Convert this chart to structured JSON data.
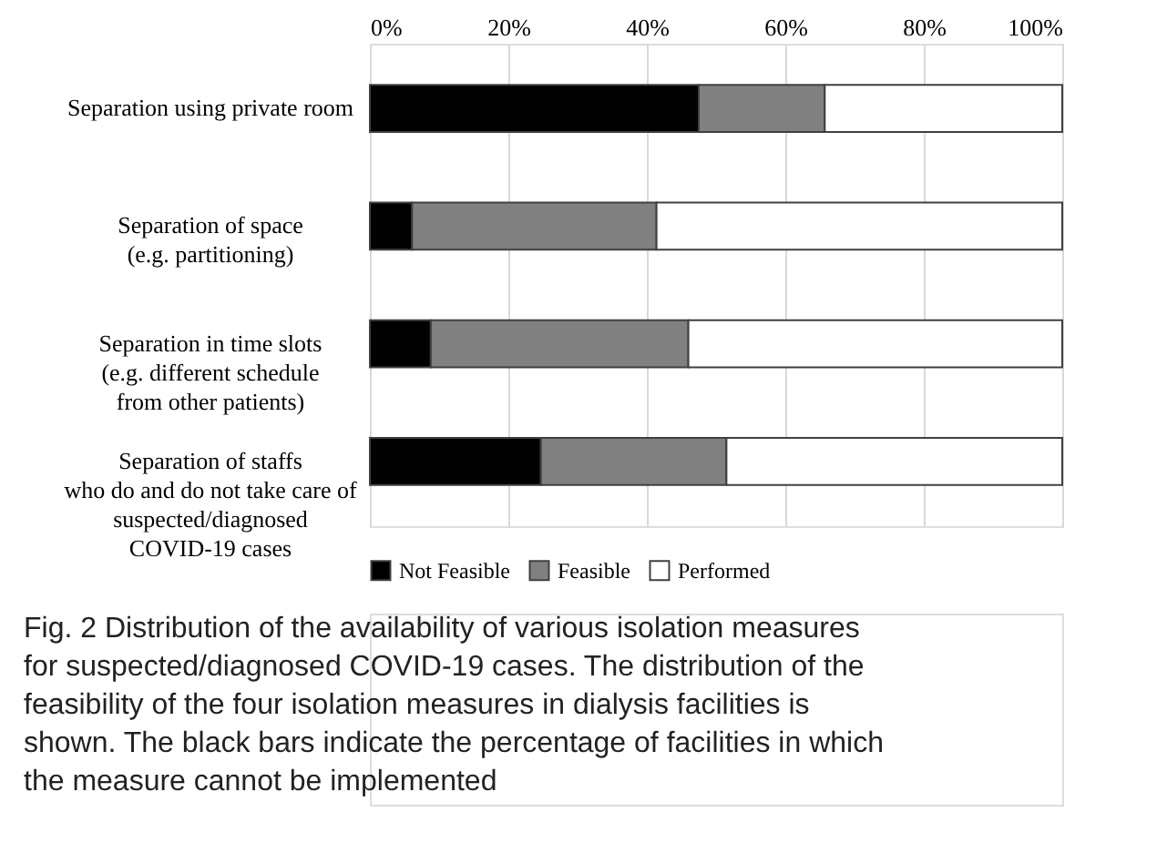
{
  "chart_data": {
    "type": "bar",
    "orientation": "horizontal",
    "stacked": true,
    "categories": [
      "Separation using private room",
      "Separation of space\n(e.g. partitioning)",
      "Separation in time slots\n(e.g. different schedule\nfrom other patients)",
      "Separation of staffs\nwho do and do not take care of\nsuspected/diagnosed\nCOVID-19 cases"
    ],
    "series": [
      {
        "name": "Not Feasible",
        "color": "#000000",
        "values": [
          47.5,
          6.1,
          8.8,
          24.7
        ]
      },
      {
        "name": "Feasible",
        "color": "#808080",
        "values": [
          18.2,
          35.3,
          37.2,
          26.8
        ]
      },
      {
        "name": "Performed",
        "color": "#ffffff",
        "values": [
          34.3,
          58.6,
          54.0,
          48.5
        ]
      }
    ],
    "xlim": [
      0,
      100
    ],
    "xticks": [
      {
        "value": 0,
        "label": "0%"
      },
      {
        "value": 20,
        "label": "20%"
      },
      {
        "value": 40,
        "label": "40%"
      },
      {
        "value": 60,
        "label": "60%"
      },
      {
        "value": 80,
        "label": "80%"
      },
      {
        "value": 100,
        "label": "100%"
      }
    ],
    "grid": "x",
    "legend": "bottom",
    "annotations": [
      "Fig. 2 Distribution of the availability of various isolation measures for suspected/diagnosed COVID-19 cases. The distribution of the feasibility of the four isolation measures in dialysis facilities is shown. The black bars indicate the percentage of facilities in which the measure cannot be implemented"
    ]
  }
}
